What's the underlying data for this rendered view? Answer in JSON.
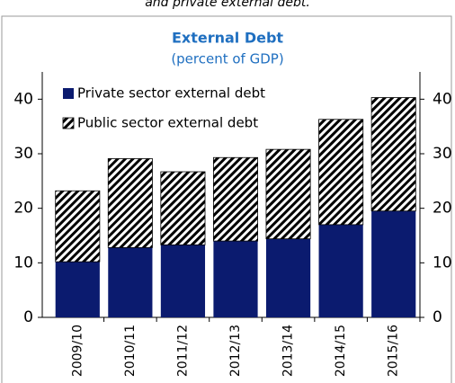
{
  "chart_data": {
    "type": "stacked-bar",
    "note": "and private external debt.",
    "title": "External Debt",
    "subtitle": "(percent of GDP)",
    "categories": [
      "2009/10",
      "2010/11",
      "2011/12",
      "2012/13",
      "2013/14",
      "2014/15",
      "2015/16"
    ],
    "series": [
      {
        "name": "Private sector external debt",
        "color": "#0b1b6f",
        "values": [
          10.2,
          12.8,
          13.3,
          14.0,
          14.4,
          17.0,
          19.5
        ]
      },
      {
        "name": "Public sector external debt",
        "color": "#000000",
        "pattern": "hatch",
        "values": [
          13.0,
          16.3,
          13.4,
          15.3,
          16.4,
          19.3,
          20.8
        ]
      }
    ],
    "ylim": [
      0,
      45
    ],
    "yticks": [
      0,
      10,
      20,
      30,
      40
    ],
    "y2lim": [
      0,
      45
    ],
    "y2ticks": [
      0,
      10,
      20,
      30,
      40
    ],
    "grid": false
  }
}
